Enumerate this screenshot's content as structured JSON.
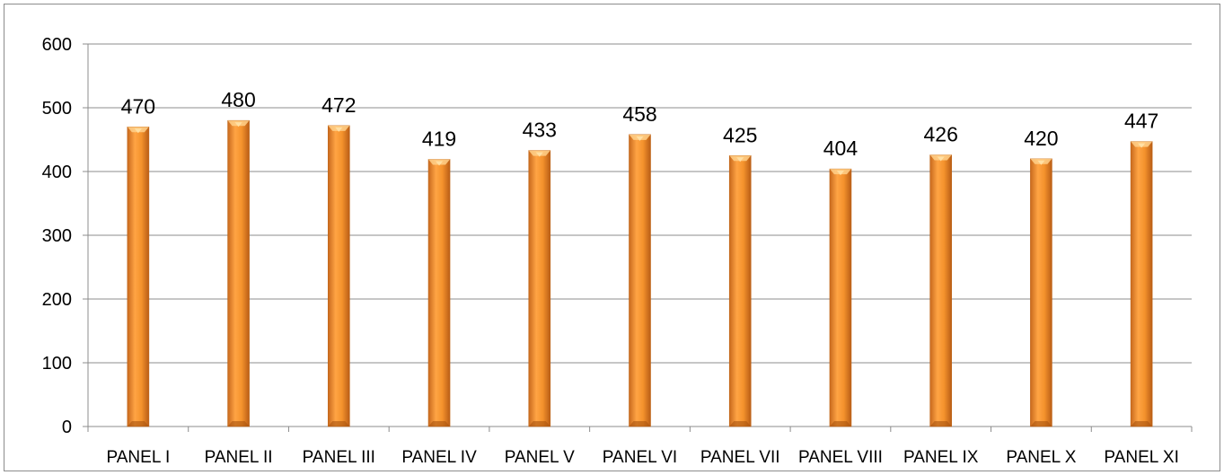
{
  "chart_data": {
    "type": "bar",
    "title": "",
    "xlabel": "",
    "ylabel": "",
    "categories": [
      "PANEL I",
      "PANEL II",
      "PANEL III",
      "PANEL IV",
      "PANEL V",
      "PANEL VI",
      "PANEL VII",
      "PANEL VIII",
      "PANEL IX",
      "PANEL X",
      "PANEL XI"
    ],
    "values": [
      470,
      480,
      472,
      419,
      433,
      458,
      425,
      404,
      426,
      420,
      447
    ],
    "data_labels": [
      "470",
      "480",
      "472",
      "419",
      "433",
      "458",
      "425",
      "404",
      "426",
      "420",
      "447"
    ],
    "ylim": [
      0,
      600
    ],
    "yticks": [
      0,
      100,
      200,
      300,
      400,
      500,
      600
    ],
    "ytick_labels": [
      "0",
      "100",
      "200",
      "300",
      "400",
      "500",
      "600"
    ],
    "grid": true,
    "legend": "none",
    "bar_color": "#f4922c",
    "bar_edge_color": "#c0661a",
    "gridline_color": "#8c8c8c"
  }
}
